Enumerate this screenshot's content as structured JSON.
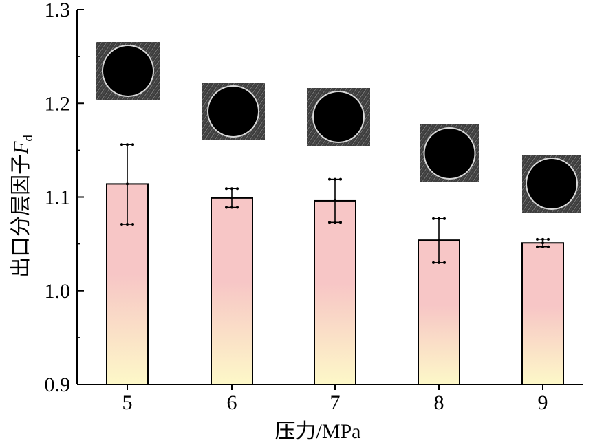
{
  "chart_data": {
    "type": "bar",
    "categories": [
      "5",
      "6",
      "7",
      "8",
      "9"
    ],
    "values": [
      1.114,
      1.099,
      1.096,
      1.054,
      1.051
    ],
    "error_low": [
      1.071,
      1.089,
      1.073,
      1.03,
      1.047
    ],
    "error_high": [
      1.156,
      1.109,
      1.119,
      1.077,
      1.055
    ],
    "xlabel": "压力/MPa",
    "ylabel_text": "出口分层因子",
    "ylabel_symbol": "F",
    "ylabel_subscript": "d",
    "ylim": [
      0.9,
      1.3
    ],
    "yticks": [
      "0.9",
      "1.0",
      "1.1",
      "1.2",
      "1.3"
    ],
    "grid": false,
    "legend": "none",
    "bar_gradient": [
      "#f7c6c6",
      "#fdf8c8"
    ],
    "inset_images": "cross-section photos of circular outlets above each bar"
  }
}
